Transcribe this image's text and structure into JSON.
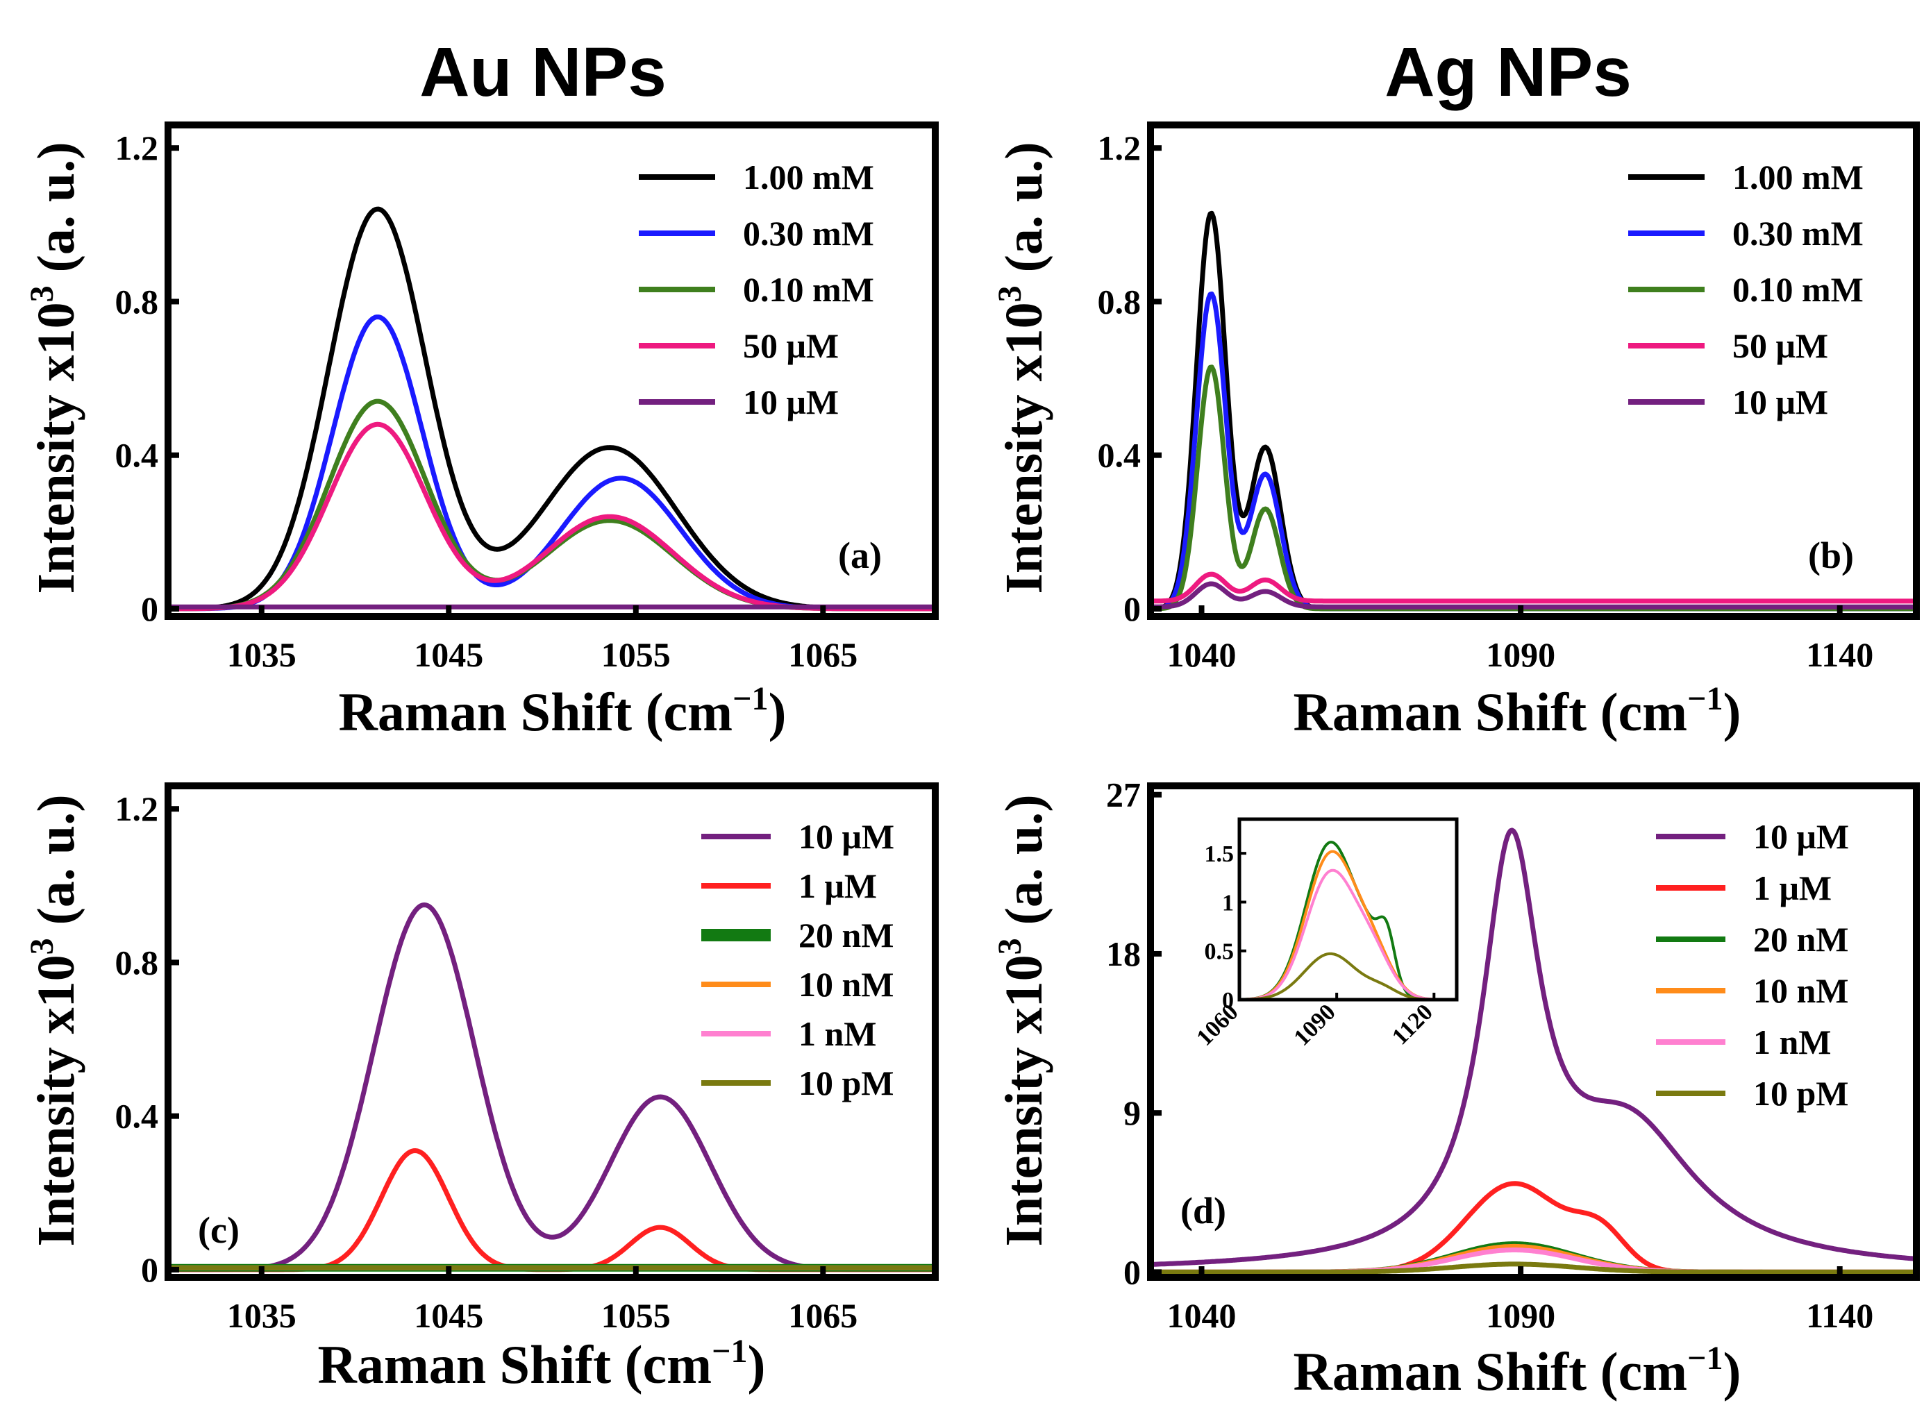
{
  "colors": {
    "black": "#000000",
    "blue": "#1a1aff",
    "green": "#3f7f1e",
    "pink": "#ee1a80",
    "purple": "#73207f",
    "red": "#ff2020",
    "darkgreen": "#127a12",
    "orange": "#ff8c1a",
    "lightpink": "#ff80d0",
    "olive": "#7a7a10"
  },
  "titles": {
    "left": "Au NPs",
    "right": "Ag NPs"
  },
  "axis_labels": {
    "x_main": "Raman Shift (cm",
    "x_sup": "−1",
    "x_close": ")",
    "y_main": "Intensity x10",
    "y_sup": "3",
    "y_unit": " (a. u.)"
  },
  "chart_data": [
    {
      "id": "a",
      "panel_label": "(a)",
      "type": "line",
      "xlabel": "Raman Shift (cm−1)",
      "ylabel": "Intensity x10^3 (a. u.)",
      "xlim": [
        1030,
        1071
      ],
      "ylim": [
        -0.02,
        1.26
      ],
      "xticks": [
        1035,
        1045,
        1055,
        1065
      ],
      "xtick_labels": [
        "1035",
        "1045",
        "1055",
        "1065"
      ],
      "yticks": [
        0,
        0.4,
        0.8,
        1.2
      ],
      "ytick_labels": [
        "0",
        "0.4",
        "0.8",
        "1.2"
      ],
      "legend_position": "top-right",
      "series": [
        {
          "name": "1.00 mM",
          "color_key": "black",
          "peaks": [
            [
              1041.2,
              1.04,
              2.6
            ],
            [
              1053.6,
              0.42,
              3.6
            ]
          ]
        },
        {
          "name": "0.30 mM",
          "color_key": "blue",
          "peaks": [
            [
              1041.2,
              0.76,
              2.4
            ],
            [
              1054.2,
              0.34,
              3.2
            ]
          ]
        },
        {
          "name": "0.10 mM",
          "color_key": "green",
          "peaks": [
            [
              1041.2,
              0.54,
              2.6
            ],
            [
              1053.6,
              0.23,
              3.4
            ]
          ]
        },
        {
          "name": "50 μM",
          "color_key": "pink",
          "peaks": [
            [
              1041.2,
              0.48,
              2.6
            ],
            [
              1053.6,
              0.24,
              3.4
            ]
          ]
        },
        {
          "name": "10 μM",
          "color_key": "purple",
          "shape": "flat",
          "baseline": 0.005
        }
      ]
    },
    {
      "id": "b",
      "panel_label": "(b)",
      "type": "line",
      "xlabel": "Raman Shift (cm−1)",
      "ylabel": "Intensity x10^3 (a. u.)",
      "xlim": [
        1032,
        1152
      ],
      "ylim": [
        -0.02,
        1.26
      ],
      "xticks": [
        1040,
        1090,
        1140
      ],
      "xtick_labels": [
        "1040",
        "1090",
        "1140"
      ],
      "yticks": [
        0,
        0.4,
        0.8,
        1.2
      ],
      "ytick_labels": [
        "0",
        "0.4",
        "0.8",
        "1.2"
      ],
      "legend_position": "top-right",
      "series": [
        {
          "name": "1.00 mM",
          "color_key": "black",
          "peaks": [
            [
              1041.5,
              1.03,
              2.3
            ],
            [
              1050.0,
              0.42,
              2.4
            ]
          ]
        },
        {
          "name": "0.30 mM",
          "color_key": "blue",
          "peaks": [
            [
              1041.5,
              0.82,
              2.3
            ],
            [
              1050.0,
              0.35,
              2.4
            ]
          ]
        },
        {
          "name": "0.10 mM",
          "color_key": "green",
          "peaks": [
            [
              1041.5,
              0.63,
              2.1
            ],
            [
              1050.0,
              0.26,
              2.2
            ]
          ]
        },
        {
          "name": "50 μM",
          "color_key": "pink",
          "baseline": 0.02,
          "peaks": [
            [
              1041.5,
              0.07,
              2.4
            ],
            [
              1050.0,
              0.055,
              2.4
            ]
          ]
        },
        {
          "name": "10 μM",
          "color_key": "purple",
          "baseline": 0.005,
          "peaks": [
            [
              1041.5,
              0.06,
              2.4
            ],
            [
              1050.0,
              0.04,
              2.4
            ]
          ]
        }
      ]
    },
    {
      "id": "c",
      "panel_label": "(c)",
      "type": "line",
      "xlabel": "Raman Shift (cm−1)",
      "ylabel": "Intensity x10^3 (a. u.)",
      "xlim": [
        1030,
        1071
      ],
      "ylim": [
        -0.02,
        1.26
      ],
      "xticks": [
        1035,
        1045,
        1055,
        1065
      ],
      "xtick_labels": [
        "1035",
        "1045",
        "1055",
        "1065"
      ],
      "yticks": [
        0,
        0.4,
        0.8,
        1.2
      ],
      "ytick_labels": [
        "0",
        "0.4",
        "0.8",
        "1.2"
      ],
      "legend_position": "top-right",
      "series": [
        {
          "name": "10 μM",
          "color_key": "purple",
          "peaks": [
            [
              1043.7,
              0.95,
              2.7
            ],
            [
              1056.3,
              0.45,
              2.7
            ]
          ]
        },
        {
          "name": "1 μM",
          "color_key": "red",
          "peaks": [
            [
              1043.2,
              0.31,
              1.8
            ],
            [
              1056.3,
              0.11,
              1.6
            ]
          ]
        },
        {
          "name": "20 nM",
          "color_key": "darkgreen",
          "shape": "flat",
          "baseline": 0.005,
          "thick": true
        },
        {
          "name": "10 nM",
          "color_key": "orange",
          "shape": "flat",
          "baseline": 0.005
        },
        {
          "name": "1 nM",
          "color_key": "lightpink",
          "shape": "flat",
          "baseline": 0.005
        },
        {
          "name": "10 pM",
          "color_key": "olive",
          "shape": "flat",
          "baseline": 0.005
        }
      ]
    },
    {
      "id": "d",
      "panel_label": "(d)",
      "type": "line",
      "xlabel": "Raman Shift (cm−1)",
      "ylabel": "Intensity x10^3 (a. u.)",
      "xlim": [
        1032,
        1152
      ],
      "ylim": [
        -0.3,
        27.5
      ],
      "xticks": [
        1040,
        1090,
        1140
      ],
      "xtick_labels": [
        "1040",
        "1090",
        "1140"
      ],
      "yticks": [
        0,
        9,
        18,
        27
      ],
      "ytick_labels": [
        "0",
        "9",
        "18",
        "27"
      ],
      "legend_position": "top-right",
      "series": [
        {
          "name": "10 μM",
          "color_key": "purple",
          "shape": "lorentz",
          "peaks": [
            [
              1088.5,
              22.5,
              5.5
            ],
            [
              1107.0,
              7.5,
              13.0
            ]
          ]
        },
        {
          "name": "1 μM",
          "color_key": "red",
          "peaks": [
            [
              1089.0,
              5.0,
              7.5
            ],
            [
              1102.5,
              2.0,
              4.0
            ]
          ]
        },
        {
          "name": "20 nM",
          "color_key": "darkgreen",
          "peaks": [
            [
              1089.0,
              1.6,
              9.5
            ]
          ]
        },
        {
          "name": "10 nM",
          "color_key": "orange",
          "peaks": [
            [
              1089.0,
              1.45,
              9.5
            ]
          ]
        },
        {
          "name": "1 nM",
          "color_key": "lightpink",
          "peaks": [
            [
              1089.0,
              1.25,
              9.5
            ]
          ]
        },
        {
          "name": "10 pM",
          "color_key": "olive",
          "peaks": [
            [
              1089.0,
              0.45,
              9.5
            ]
          ]
        }
      ],
      "inset": {
        "type": "line",
        "xlim": [
          1060,
          1127
        ],
        "ylim": [
          0,
          1.85
        ],
        "xticks": [
          1060,
          1090,
          1120
        ],
        "xtick_labels": [
          "1060",
          "1090",
          "1120"
        ],
        "yticks": [
          0,
          0.5,
          1,
          1.5
        ],
        "ytick_labels": [
          "0",
          "0.5",
          "1",
          "1.5"
        ],
        "series": [
          {
            "name": "20 nM",
            "color_key": "darkgreen",
            "peaks": [
              [
                1088.0,
                1.6,
                7.5
              ],
              [
                1105.5,
                0.42,
                2.5
              ],
              [
                1101.0,
                0.4,
                5.0
              ]
            ]
          },
          {
            "name": "10 nM",
            "color_key": "orange",
            "peaks": [
              [
                1088.0,
                1.47,
                7.5
              ],
              [
                1101.0,
                0.45,
                6.0
              ]
            ]
          },
          {
            "name": "1 nM",
            "color_key": "lightpink",
            "peaks": [
              [
                1088.0,
                1.28,
                7.5
              ],
              [
                1101.0,
                0.42,
                6.0
              ]
            ]
          },
          {
            "name": "10 pM",
            "color_key": "olive",
            "peaks": [
              [
                1088.0,
                0.47,
                8.0
              ],
              [
                1104.0,
                0.1,
                5.0
              ]
            ]
          }
        ]
      }
    }
  ]
}
